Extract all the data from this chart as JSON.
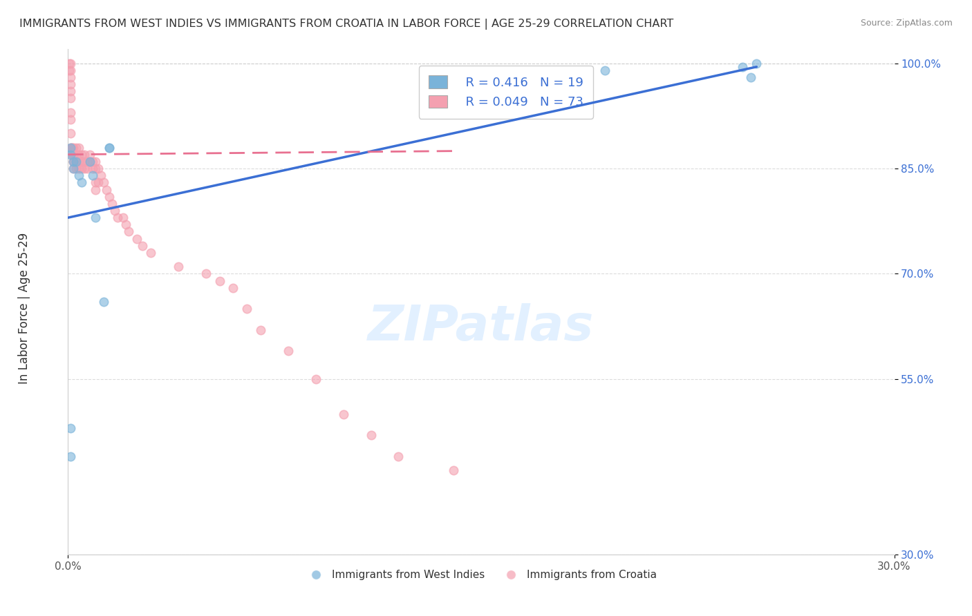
{
  "title": "IMMIGRANTS FROM WEST INDIES VS IMMIGRANTS FROM CROATIA IN LABOR FORCE | AGE 25-29 CORRELATION CHART",
  "source": "Source: ZipAtlas.com",
  "xlabel_bottom": "",
  "ylabel": "In Labor Force | Age 25-29",
  "xaxis_label": "",
  "x_tick_labels": [
    "0.0%",
    "30.0%"
  ],
  "y_tick_labels_right": [
    "30.0%",
    "55.0%",
    "70.0%",
    "85.0%",
    "100.0%"
  ],
  "xlim": [
    0.0,
    0.3
  ],
  "ylim": [
    0.3,
    1.02
  ],
  "legend_r1": "R = 0.416",
  "legend_n1": "N = 19",
  "legend_r2": "R = 0.049",
  "legend_n2": "N = 73",
  "legend_label1": "Immigrants from West Indies",
  "legend_label2": "Immigrants from Croatia",
  "blue_color": "#7ab3d9",
  "pink_color": "#f4a0b0",
  "line_blue": "#3b6fd4",
  "line_pink": "#e87090",
  "watermark": "ZIPatlas",
  "background_color": "#ffffff",
  "blue_scatter_x": [
    0.001,
    0.001,
    0.001,
    0.001,
    0.002,
    0.002,
    0.003,
    0.004,
    0.005,
    0.008,
    0.009,
    0.01,
    0.013,
    0.015,
    0.015,
    0.195,
    0.245,
    0.248,
    0.25
  ],
  "blue_scatter_y": [
    0.48,
    0.44,
    0.87,
    0.88,
    0.85,
    0.86,
    0.86,
    0.84,
    0.83,
    0.86,
    0.84,
    0.78,
    0.66,
    0.88,
    0.88,
    0.99,
    0.995,
    0.98,
    1.0
  ],
  "pink_scatter_x": [
    0.0005,
    0.0005,
    0.001,
    0.001,
    0.001,
    0.001,
    0.001,
    0.001,
    0.001,
    0.001,
    0.001,
    0.001,
    0.0015,
    0.0015,
    0.0015,
    0.002,
    0.002,
    0.002,
    0.002,
    0.002,
    0.002,
    0.002,
    0.003,
    0.003,
    0.003,
    0.003,
    0.004,
    0.004,
    0.004,
    0.004,
    0.005,
    0.005,
    0.005,
    0.006,
    0.006,
    0.006,
    0.007,
    0.007,
    0.008,
    0.008,
    0.009,
    0.009,
    0.01,
    0.01,
    0.01,
    0.01,
    0.011,
    0.011,
    0.012,
    0.013,
    0.014,
    0.015,
    0.016,
    0.017,
    0.018,
    0.02,
    0.021,
    0.022,
    0.025,
    0.027,
    0.03,
    0.04,
    0.05,
    0.055,
    0.06,
    0.065,
    0.07,
    0.08,
    0.09,
    0.1,
    0.11,
    0.12,
    0.14
  ],
  "pink_scatter_y": [
    1.0,
    0.99,
    1.0,
    0.99,
    0.98,
    0.97,
    0.96,
    0.95,
    0.93,
    0.92,
    0.9,
    0.88,
    0.88,
    0.88,
    0.87,
    0.88,
    0.87,
    0.87,
    0.87,
    0.86,
    0.86,
    0.85,
    0.88,
    0.87,
    0.86,
    0.85,
    0.88,
    0.87,
    0.86,
    0.85,
    0.87,
    0.86,
    0.85,
    0.87,
    0.86,
    0.85,
    0.86,
    0.85,
    0.87,
    0.86,
    0.86,
    0.85,
    0.86,
    0.85,
    0.83,
    0.82,
    0.85,
    0.83,
    0.84,
    0.83,
    0.82,
    0.81,
    0.8,
    0.79,
    0.78,
    0.78,
    0.77,
    0.76,
    0.75,
    0.74,
    0.73,
    0.71,
    0.7,
    0.69,
    0.68,
    0.65,
    0.62,
    0.59,
    0.55,
    0.5,
    0.47,
    0.44,
    0.42
  ],
  "blue_line_x": [
    0.0,
    0.25
  ],
  "blue_line_y": [
    0.78,
    0.995
  ],
  "pink_line_x": [
    0.0,
    0.14
  ],
  "pink_line_y": [
    0.87,
    0.875
  ]
}
